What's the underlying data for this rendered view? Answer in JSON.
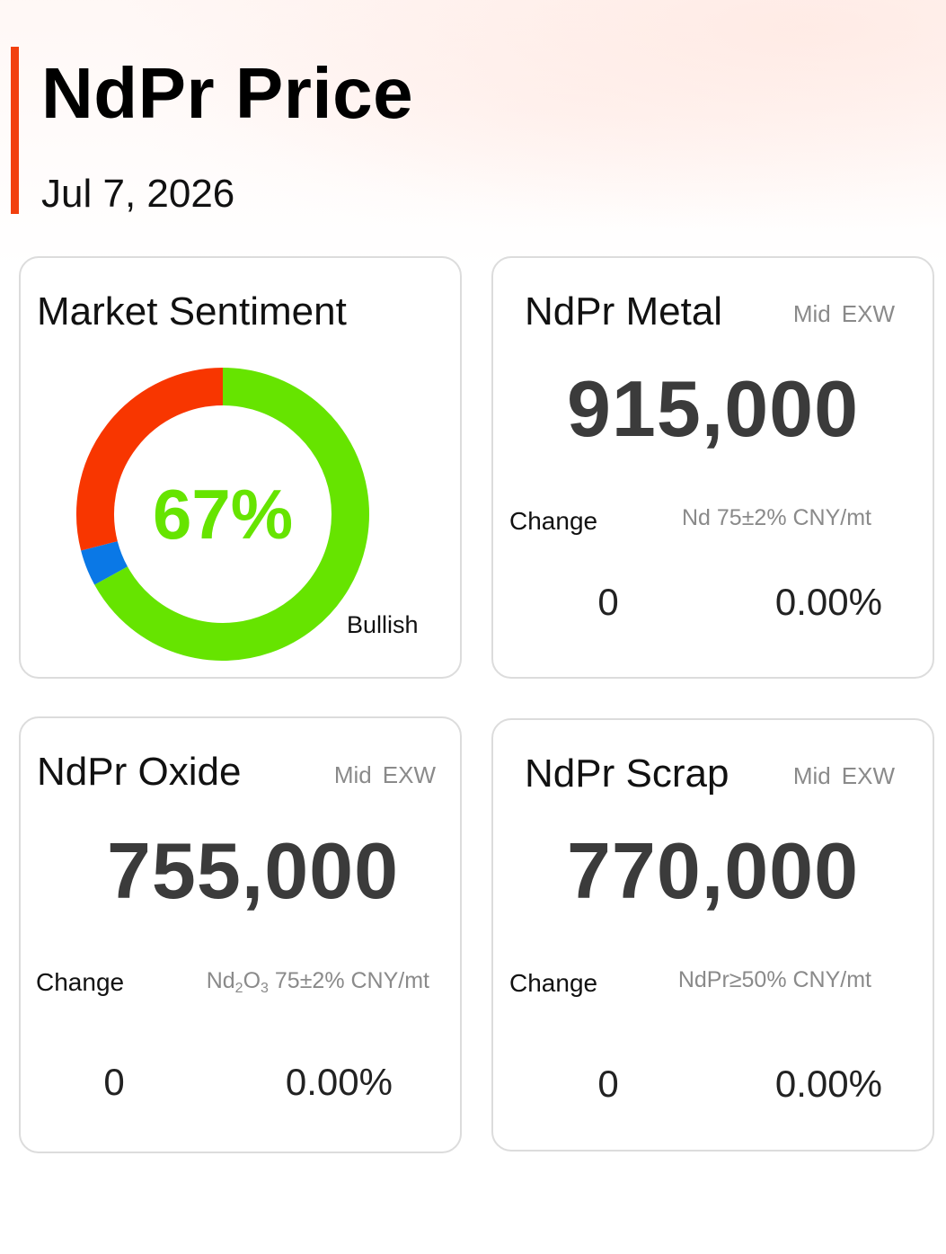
{
  "header": {
    "title": "NdPr Price",
    "date": "Jul 7, 2026",
    "accent_color": "#f2400f"
  },
  "sentiment": {
    "title": "Market Sentiment",
    "percent_label": "67%",
    "label": "Bullish",
    "segments": [
      {
        "key": "bullish",
        "value": 67,
        "color": "#66e400"
      },
      {
        "key": "neutral",
        "value": 4,
        "color": "#0a78e6"
      },
      {
        "key": "bearish",
        "value": 29,
        "color": "#f83600"
      }
    ]
  },
  "metal": {
    "title": "NdPr Metal",
    "basis": [
      "Mid",
      "EXW"
    ],
    "price": "915,000",
    "change_label": "Change",
    "spec": "Nd 75±2% CNY/mt",
    "change_abs": "0",
    "change_pct": "0.00%"
  },
  "oxide": {
    "title": "NdPr Oxide",
    "basis": [
      "Mid",
      "EXW"
    ],
    "price": "755,000",
    "change_label": "Change",
    "spec_formula": {
      "el1": "Nd",
      "sub1": "2",
      "el2": "O",
      "sub2": "3"
    },
    "spec_rest": " 75±2% CNY/mt",
    "change_abs": "0",
    "change_pct": "0.00%"
  },
  "scrap": {
    "title": "NdPr Scrap",
    "basis": [
      "Mid",
      "EXW"
    ],
    "price": "770,000",
    "change_label": "Change",
    "spec": "NdPr≥50% CNY/mt",
    "change_abs": "0",
    "change_pct": "0.00%"
  }
}
